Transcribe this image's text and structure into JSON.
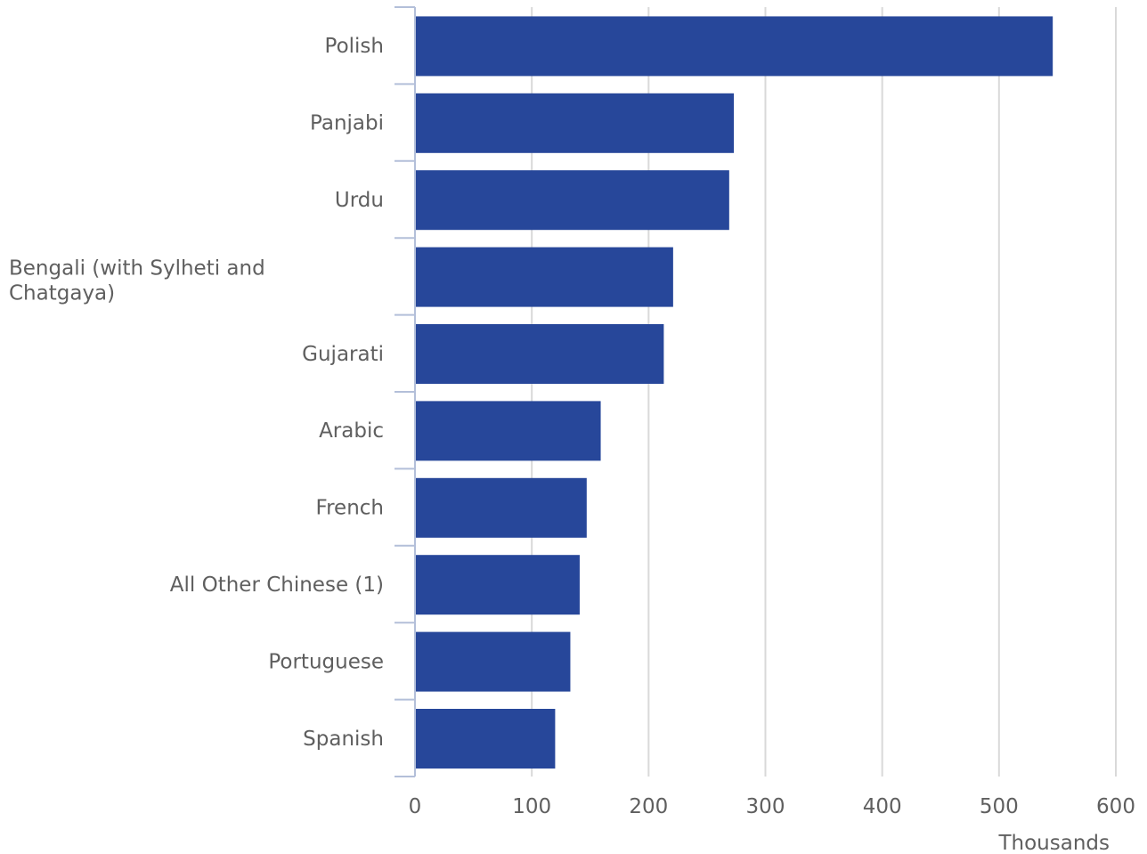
{
  "chart_data": {
    "type": "bar",
    "orientation": "horizontal",
    "categories": [
      "Polish",
      "Panjabi",
      "Urdu",
      "Bengali (with Sylheti and Chatgaya)",
      "Gujarati",
      "Arabic",
      "French",
      "All Other Chinese (1)",
      "Portuguese",
      "Spanish"
    ],
    "values": [
      546,
      273,
      269,
      221,
      213,
      159,
      147,
      141,
      133,
      120
    ],
    "title": "",
    "xlabel": "Thousands",
    "ylabel": "",
    "xlim": [
      0,
      600
    ],
    "xticks": [
      0,
      100,
      200,
      300,
      400,
      500,
      600
    ],
    "grid": "vertical",
    "legend": "none",
    "bar_color": "#27479a",
    "grid_color": "#d9d9d9",
    "axis_color": "#b3bfd9"
  }
}
